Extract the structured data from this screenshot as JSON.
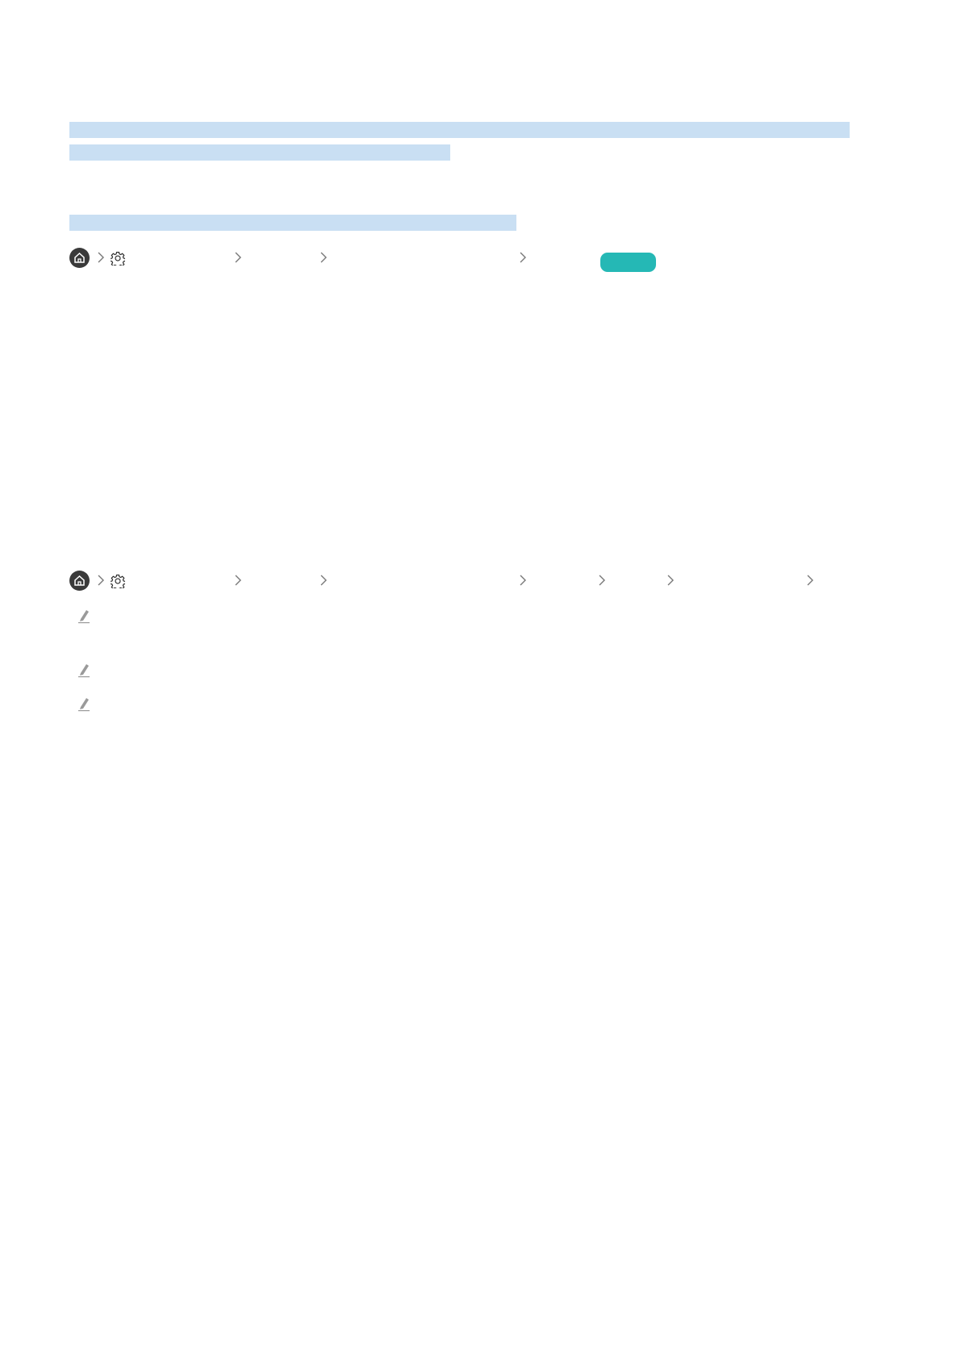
{
  "colors": {
    "highlight": "#c9dff3",
    "home_icon_bg": "#3a3a3a",
    "chevron": "#777777",
    "badge": "#25b8b5",
    "pencil": "#9a9a9a"
  },
  "breadcrumb_1": {
    "icons": [
      "home-icon",
      "gear-icon"
    ],
    "chevrons": 4,
    "has_badge": true
  },
  "breadcrumb_2": {
    "icons": [
      "home-icon",
      "gear-icon"
    ],
    "chevrons": 7
  },
  "notes": {
    "icon": "pencil-icon",
    "count": 3
  }
}
